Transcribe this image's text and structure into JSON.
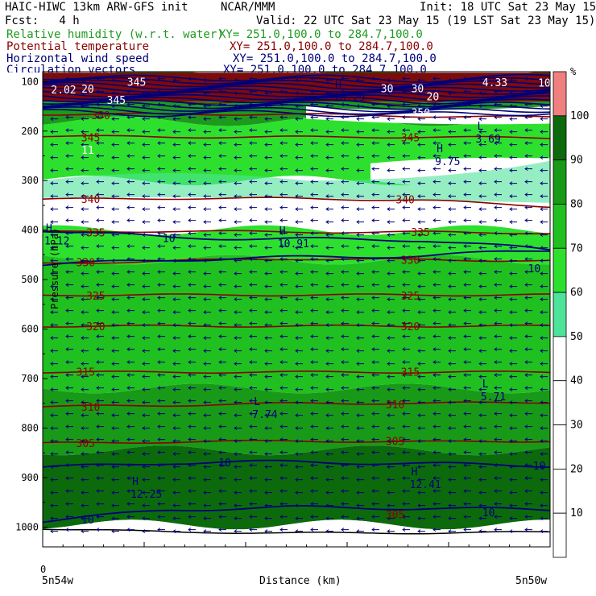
{
  "header": {
    "model": "HAIC-HIWC 13km ARW-GFS init",
    "org": "NCAR/MMM",
    "init": "Init: 18 UTC Sat 23 May 15",
    "fcst": "Fcst:   4 h",
    "valid": "Valid: 22 UTC Sat 23 May 15 (19 LST Sat 23 May 15)",
    "fields": [
      {
        "label": "Relative humidity (w.r.t. water)",
        "xy": "XY= 251.0,100.0 to 284.7,100.0",
        "color": "#1f9a1f"
      },
      {
        "label": "Potential temperature",
        "xy": "XY= 251.0,100.0 to 284.7,100.0",
        "color": "#8b0000"
      },
      {
        "label": "Horizontal wind speed",
        "xy": "XY= 251.0,100.0 to 284.7,100.0",
        "color": "#00007a"
      },
      {
        "label": "Circulation vectors",
        "xy": "XY= 251.0,100.0 to 284.7,100.0",
        "color": "#00007a"
      }
    ]
  },
  "chart_data": {
    "type": "cross-section",
    "ylabel": "Pressure (hPa)",
    "xlabel": "Distance (km)",
    "x_start_label": "5n54w",
    "x_end_label": "5n50w",
    "x_zero_label": "0",
    "yticks": [
      100,
      200,
      300,
      400,
      500,
      600,
      700,
      800,
      900,
      1000
    ],
    "ylim": [
      80,
      1040
    ],
    "xticks_frac": [
      0,
      0.2,
      0.4,
      0.6,
      0.8
    ],
    "colorbar": {
      "unit": "%",
      "levels": [
        10,
        20,
        30,
        40,
        50,
        60,
        70,
        80,
        90,
        100
      ],
      "colors": [
        "#ffffff",
        "#ffffff",
        "#ffffff",
        "#ffffff",
        "#ffffff",
        "#4ee39a",
        "#2ee02e",
        "#20c020",
        "#189a18",
        "#0c6a0c",
        "#f08080"
      ]
    },
    "theta_contours": [
      {
        "value": 350,
        "p": [
          166,
          166,
          166,
          170,
          172
        ]
      },
      {
        "value": 345,
        "p": [
          210,
          212,
          212,
          212,
          214
        ]
      },
      {
        "value": 340,
        "p": [
          338,
          336,
          336,
          340,
          352
        ]
      },
      {
        "value": 335,
        "p": [
          404,
          402,
          404,
          404,
          406
        ]
      },
      {
        "value": 330,
        "p": [
          468,
          462,
          458,
          460,
          462
        ]
      },
      {
        "value": 325,
        "p": [
          531,
          531,
          531,
          531,
          531
        ]
      },
      {
        "value": 320,
        "p": [
          594,
          594,
          594,
          594,
          594
        ]
      },
      {
        "value": 315,
        "p": [
          687,
          687,
          687,
          687,
          687
        ]
      },
      {
        "value": 310,
        "p": [
          757,
          754,
          750,
          750,
          748
        ]
      },
      {
        "value": 305,
        "p": [
          831,
          828,
          826,
          828,
          826
        ]
      }
    ],
    "theta_labels": [
      {
        "text": "350",
        "x": 0.08,
        "p": 168
      },
      {
        "text": "345",
        "x": 0.06,
        "p": 213
      },
      {
        "text": "345",
        "x": 0.69,
        "p": 213
      },
      {
        "text": "340",
        "x": 0.06,
        "p": 337
      },
      {
        "text": "340",
        "x": 0.68,
        "p": 338
      },
      {
        "text": "335",
        "x": 0.07,
        "p": 405
      },
      {
        "text": "335",
        "x": 0.71,
        "p": 404
      },
      {
        "text": "330",
        "x": 0.05,
        "p": 465
      },
      {
        "text": "330",
        "x": 0.69,
        "p": 460
      },
      {
        "text": "325",
        "x": 0.07,
        "p": 532
      },
      {
        "text": "325",
        "x": 0.69,
        "p": 532
      },
      {
        "text": "320",
        "x": 0.07,
        "p": 594
      },
      {
        "text": "320",
        "x": 0.69,
        "p": 594
      },
      {
        "text": "315",
        "x": 0.05,
        "p": 686
      },
      {
        "text": "315",
        "x": 0.69,
        "p": 686
      },
      {
        "text": "310",
        "x": 0.06,
        "p": 757
      },
      {
        "text": "310",
        "x": 0.66,
        "p": 752
      },
      {
        "text": "305",
        "x": 0.05,
        "p": 830
      },
      {
        "text": "305",
        "x": 0.66,
        "p": 826
      },
      {
        "text": "305",
        "x": 0.66,
        "p": 974
      }
    ],
    "wind_labels": [
      {
        "text": "10",
        "x": 0.23,
        "p": 416
      },
      {
        "text": "10",
        "x": 0.95,
        "p": 477
      },
      {
        "text": "10",
        "x": 0.34,
        "p": 869
      },
      {
        "text": "10",
        "x": 0.96,
        "p": 876
      },
      {
        "text": "10",
        "x": 0.07,
        "p": 985
      },
      {
        "text": "10",
        "x": 0.86,
        "p": 970
      }
    ],
    "extrema": [
      {
        "sym": "H",
        "val": "1.12",
        "x": 0.0,
        "p": 416
      },
      {
        "sym": "H",
        "val": "10.91",
        "x": 0.46,
        "p": 422
      },
      {
        "sym": "H",
        "val": "9.75",
        "x": 0.77,
        "p": 256
      },
      {
        "sym": "L",
        "val": "3.69",
        "x": 0.85,
        "p": 210
      },
      {
        "sym": "L",
        "val": "7.74",
        "x": 0.41,
        "p": 767
      },
      {
        "sym": "L",
        "val": "5.71",
        "x": 0.86,
        "p": 731
      },
      {
        "sym": "H",
        "val": "12.25",
        "x": 0.17,
        "p": 928
      },
      {
        "sym": "H",
        "val": "12.41",
        "x": 0.72,
        "p": 908
      },
      {
        "sym": "H",
        "val": "10.29",
        "x": 0.57,
        "p": 126
      }
    ],
    "top_fragments": [
      {
        "text": "345",
        "x": 0.16,
        "p": 100
      },
      {
        "text": "4.33",
        "x": 0.86,
        "p": 101
      },
      {
        "text": "10",
        "x": 0.97,
        "p": 102
      },
      {
        "text": "2.02",
        "x": 0.01,
        "p": 116
      },
      {
        "text": "20",
        "x": 0.07,
        "p": 114
      },
      {
        "text": "345",
        "x": 0.12,
        "p": 137
      },
      {
        "text": "30",
        "x": 0.66,
        "p": 113
      },
      {
        "text": "30",
        "x": 0.72,
        "p": 113
      },
      {
        "text": "20",
        "x": 0.75,
        "p": 130
      },
      {
        "text": "350",
        "x": 0.72,
        "p": 162
      },
      {
        "text": "11",
        "x": 0.07,
        "p": 238
      }
    ]
  }
}
